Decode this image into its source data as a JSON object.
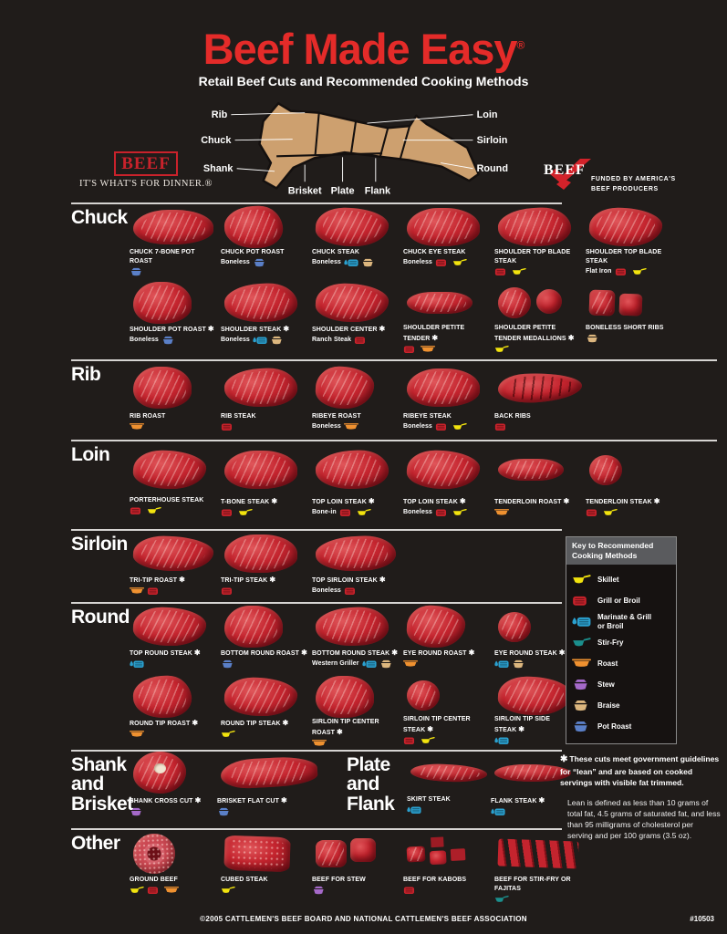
{
  "header": {
    "title": "Beef Made Easy",
    "registered": "®",
    "subtitle": "Retail Beef Cuts and Recommended Cooking Methods"
  },
  "diagram": {
    "labels": {
      "rib": "Rib",
      "chuck": "Chuck",
      "shank": "Shank",
      "brisket": "Brisket",
      "plate": "Plate",
      "flank": "Flank",
      "loin": "Loin",
      "sirloin": "Sirloin",
      "round": "Round"
    },
    "cow_color": "#cda06f"
  },
  "logos": {
    "left": {
      "box_text": "BEEF",
      "tagline": "IT'S WHAT'S FOR DINNER.®"
    },
    "right": {
      "check_text": "BEEF",
      "tagline_line1": "FUNDED BY AMERICA'S",
      "tagline_line2": "BEEF PRODUCERS"
    }
  },
  "methods": {
    "skillet": {
      "label": "Skillet",
      "color": "#f2e30e"
    },
    "grill": {
      "label": "Grill or Broil",
      "color": "#c9222b"
    },
    "marinate": {
      "label": "Marinate & Grill or Broil",
      "color": "#2aa0cf"
    },
    "stirfry": {
      "label": "Stir-Fry",
      "color": "#1b8f8d"
    },
    "roast": {
      "label": "Roast",
      "color": "#ef9130"
    },
    "stew": {
      "label": "Stew",
      "color": "#a569c9"
    },
    "braise": {
      "label": "Braise",
      "color": "#dcb67e"
    },
    "potroast": {
      "label": "Pot Roast",
      "color": "#5a7fc7"
    }
  },
  "legend": {
    "title": "Key to Recommended Cooking Methods",
    "order": [
      "skillet",
      "grill",
      "marinate",
      "stirfry",
      "roast",
      "stew",
      "braise",
      "potroast"
    ]
  },
  "lean_marker": "✱",
  "sections": [
    {
      "type": "normal",
      "slug": "chuck",
      "title": "Chuck",
      "rule": "short",
      "rows": [
        [
          {
            "title": "CHUCK 7-BONE POT ROAST",
            "sub": "",
            "lean": false,
            "methods": [
              "potroast"
            ],
            "shape": "s-wide"
          },
          {
            "title": "CHUCK POT ROAST",
            "sub": "Boneless",
            "lean": false,
            "methods": [
              "potroast"
            ],
            "shape": "s-roast"
          },
          {
            "title": "CHUCK STEAK",
            "sub": "Boneless",
            "lean": false,
            "methods": [
              "marinate",
              "braise"
            ],
            "shape": ""
          },
          {
            "title": "CHUCK EYE STEAK",
            "sub": "Boneless",
            "lean": false,
            "methods": [
              "grill",
              "skillet"
            ],
            "shape": ""
          },
          {
            "title": "SHOULDER TOP BLADE STEAK",
            "sub": "",
            "lean": false,
            "methods": [
              "grill",
              "skillet"
            ],
            "shape": ""
          },
          {
            "title": "SHOULDER TOP BLADE STEAK",
            "sub": "Flat Iron",
            "lean": false,
            "methods": [
              "grill",
              "skillet"
            ],
            "shape": ""
          }
        ],
        [
          {
            "title": "SHOULDER POT ROAST",
            "sub": "Boneless",
            "lean": true,
            "methods": [
              "potroast"
            ],
            "shape": "s-roast"
          },
          {
            "title": "SHOULDER STEAK",
            "sub": "Boneless",
            "lean": true,
            "methods": [
              "marinate",
              "braise"
            ],
            "shape": ""
          },
          {
            "title": "SHOULDER CENTER",
            "sub": "Ranch Steak",
            "lean": true,
            "methods": [
              "grill"
            ],
            "shape": ""
          },
          {
            "title": "SHOULDER PETITE TENDER",
            "sub": "",
            "lean": true,
            "methods": [
              "grill",
              "roast"
            ],
            "shape": "s-log"
          },
          {
            "title": "SHOULDER PETITE TENDER MEDALLIONS",
            "sub": "",
            "lean": true,
            "methods": [
              "skillet"
            ],
            "shape": "s-medallions"
          },
          {
            "title": "BONELESS SHORT RIBS",
            "sub": "",
            "lean": false,
            "methods": [
              "braise"
            ],
            "shape": "s-shortribs"
          }
        ]
      ]
    },
    {
      "type": "normal",
      "slug": "rib",
      "title": "Rib",
      "rule": "full",
      "rows": [
        [
          {
            "title": "RIB ROAST",
            "sub": "",
            "lean": false,
            "methods": [
              "roast"
            ],
            "shape": "s-roast"
          },
          {
            "title": "RIB STEAK",
            "sub": "",
            "lean": false,
            "methods": [
              "grill"
            ],
            "shape": ""
          },
          {
            "title": "RIBEYE ROAST",
            "sub": "Boneless",
            "lean": false,
            "methods": [
              "roast"
            ],
            "shape": "s-roast"
          },
          {
            "title": "RIBEYE STEAK",
            "sub": "Boneless",
            "lean": false,
            "methods": [
              "grill",
              "skillet"
            ],
            "shape": ""
          },
          {
            "title": "BACK RIBS",
            "sub": "",
            "lean": false,
            "methods": [
              "grill"
            ],
            "shape": "s-ribs"
          }
        ]
      ]
    },
    {
      "type": "normal",
      "slug": "loin",
      "title": "Loin",
      "rule": "full",
      "rows": [
        [
          {
            "title": "PORTERHOUSE STEAK",
            "sub": "",
            "lean": false,
            "methods": [
              "grill",
              "skillet"
            ],
            "shape": ""
          },
          {
            "title": "T-BONE STEAK",
            "sub": "",
            "lean": true,
            "methods": [
              "grill",
              "skillet"
            ],
            "shape": ""
          },
          {
            "title": "TOP LOIN STEAK",
            "sub": "Bone-in",
            "lean": true,
            "methods": [
              "grill",
              "skillet"
            ],
            "shape": ""
          },
          {
            "title": "TOP LOIN STEAK",
            "sub": "Boneless",
            "lean": true,
            "methods": [
              "grill",
              "skillet"
            ],
            "shape": ""
          },
          {
            "title": "TENDERLOIN ROAST",
            "sub": "",
            "lean": true,
            "methods": [
              "roast"
            ],
            "shape": "s-log"
          },
          {
            "title": "TENDERLOIN STEAK",
            "sub": "",
            "lean": true,
            "methods": [
              "grill",
              "skillet"
            ],
            "shape": "s-round"
          }
        ]
      ]
    },
    {
      "type": "normal",
      "slug": "sirloin",
      "title": "Sirloin",
      "rule": "short",
      "rows": [
        [
          {
            "title": "TRI-TIP ROAST",
            "sub": "",
            "lean": true,
            "methods": [
              "roast",
              "grill"
            ],
            "shape": "s-wide"
          },
          {
            "title": "TRI-TIP STEAK",
            "sub": "",
            "lean": true,
            "methods": [
              "grill"
            ],
            "shape": ""
          },
          {
            "title": "TOP SIRLOIN STEAK",
            "sub": "Boneless",
            "lean": true,
            "methods": [
              "grill"
            ],
            "shape": "s-wide"
          }
        ]
      ]
    },
    {
      "type": "normal",
      "slug": "round",
      "title": "Round",
      "rule": "short",
      "rows": [
        [
          {
            "title": "TOP ROUND STEAK",
            "sub": "",
            "lean": true,
            "methods": [
              "marinate"
            ],
            "shape": ""
          },
          {
            "title": "BOTTOM ROUND ROAST",
            "sub": "",
            "lean": true,
            "methods": [
              "potroast"
            ],
            "shape": "s-roast"
          },
          {
            "title": "BOTTOM ROUND STEAK",
            "sub": "Western Griller",
            "lean": true,
            "methods": [
              "marinate",
              "braise"
            ],
            "shape": ""
          },
          {
            "title": "EYE ROUND ROAST",
            "sub": "",
            "lean": true,
            "methods": [
              "roast"
            ],
            "shape": "s-roast"
          },
          {
            "title": "EYE ROUND STEAK",
            "sub": "",
            "lean": true,
            "methods": [
              "marinate",
              "braise"
            ],
            "shape": "s-round"
          }
        ],
        [
          {
            "title": "ROUND TIP ROAST",
            "sub": "",
            "lean": true,
            "methods": [
              "roast"
            ],
            "shape": "s-roast"
          },
          {
            "title": "ROUND TIP STEAK",
            "sub": "",
            "lean": true,
            "methods": [
              "skillet"
            ],
            "shape": ""
          },
          {
            "title": "SIRLOIN TIP CENTER ROAST",
            "sub": "",
            "lean": true,
            "methods": [
              "roast"
            ],
            "shape": "s-roast"
          },
          {
            "title": "SIRLOIN TIP CENTER STEAK",
            "sub": "",
            "lean": true,
            "methods": [
              "grill",
              "skillet"
            ],
            "shape": "s-round"
          },
          {
            "title": "SIRLOIN TIP SIDE STEAK",
            "sub": "",
            "lean": true,
            "methods": [
              "marinate"
            ],
            "shape": ""
          }
        ]
      ]
    },
    {
      "type": "double",
      "slug": "shankplate",
      "rule": "short",
      "groups": [
        {
          "title": "Shank\nand\nBrisket",
          "cuts": [
            {
              "title": "SHANK CROSS CUT",
              "sub": "",
              "lean": true,
              "methods": [
                "stew"
              ],
              "shape": "s-shank"
            },
            {
              "title": "BRISKET FLAT CUT",
              "sub": "",
              "lean": true,
              "methods": [
                "potroast"
              ],
              "shape": "s-brisket"
            }
          ]
        },
        {
          "title": "Plate\nand\nFlank",
          "cuts": [
            {
              "title": "SKIRT STEAK",
              "sub": "",
              "lean": false,
              "methods": [
                "marinate"
              ],
              "shape": "s-strip"
            },
            {
              "title": "FLANK STEAK",
              "sub": "",
              "lean": true,
              "methods": [
                "marinate"
              ],
              "shape": "s-strip"
            }
          ]
        }
      ]
    },
    {
      "type": "normal",
      "slug": "other",
      "title": "Other",
      "rule": "short",
      "rows": [
        [
          {
            "title": "GROUND BEEF",
            "sub": "",
            "lean": false,
            "methods": [
              "skillet",
              "grill",
              "roast"
            ],
            "shape": "s-ring"
          },
          {
            "title": "CUBED STEAK",
            "sub": "",
            "lean": false,
            "methods": [
              "skillet"
            ],
            "shape": "s-crumble"
          },
          {
            "title": "BEEF FOR STEW",
            "sub": "",
            "lean": false,
            "methods": [
              "stew"
            ],
            "shape": "s-chunks"
          },
          {
            "title": "BEEF FOR KABOBS",
            "sub": "",
            "lean": false,
            "methods": [
              "grill"
            ],
            "shape": "s-cubes"
          },
          {
            "title": "BEEF FOR STIR-FRY OR FAJITAS",
            "sub": "",
            "lean": false,
            "methods": [
              "stirfry"
            ],
            "shape": "s-strips"
          }
        ]
      ]
    }
  ],
  "footnote": {
    "p1": "These cuts meet government guidelines for “lean” and are based on cooked servings with visible fat trimmed.",
    "p2": "Lean is defined as less than 10 grams of total fat, 4.5 grams of saturated fat, and less than 95 milligrams of cholesterol per serving and per 100 grams (3.5 oz)."
  },
  "footer": {
    "copyright": "©2005 CATTLEMEN'S BEEF BOARD AND NATIONAL CATTLEMEN'S BEEF ASSOCIATION",
    "item_number": "#10503"
  }
}
